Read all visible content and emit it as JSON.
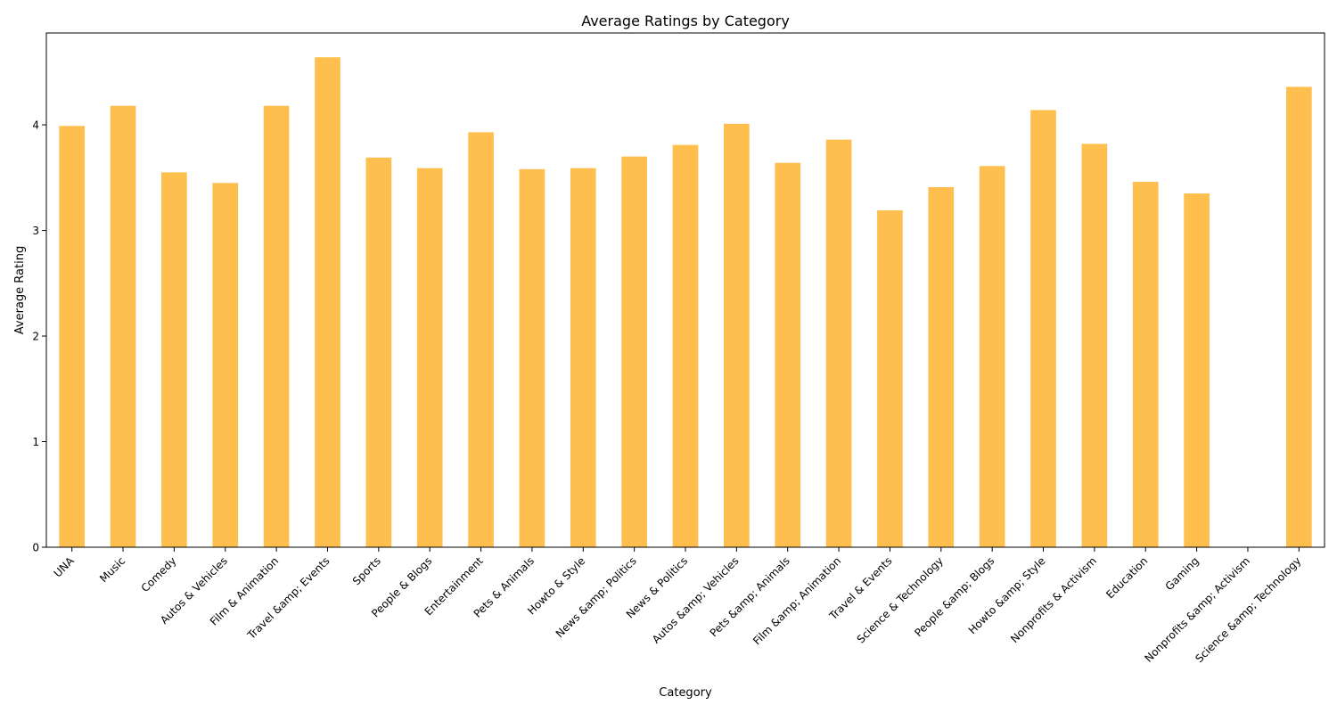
{
  "chart_data": {
    "type": "bar",
    "title": "Average Ratings by Category",
    "xlabel": "Category",
    "ylabel": "Average Rating",
    "categories": [
      "UNA",
      "Music",
      "Comedy",
      "Autos & Vehicles",
      "Film & Animation",
      "Travel &amp; Events",
      "Sports",
      "People & Blogs",
      "Entertainment",
      "Pets & Animals",
      "Howto & Style",
      "News &amp; Politics",
      "News & Politics",
      "Autos &amp; Vehicles",
      "Pets &amp; Animals",
      "Film &amp; Animation",
      "Travel & Events",
      "Science & Technology",
      "People &amp; Blogs",
      "Howto &amp; Style",
      "Nonprofits & Activism",
      "Education",
      "Gaming",
      "Nonprofits &amp; Activism",
      "Science &amp; Technology"
    ],
    "values": [
      3.99,
      4.18,
      3.55,
      3.45,
      4.18,
      4.64,
      3.69,
      3.59,
      3.93,
      3.58,
      3.59,
      3.7,
      3.81,
      4.01,
      3.64,
      3.86,
      3.19,
      3.41,
      3.61,
      4.14,
      3.82,
      3.46,
      3.35,
      0,
      4.36
    ],
    "ylim": [
      0,
      4.87
    ],
    "yticks": [
      0,
      1,
      2,
      3,
      4
    ],
    "grid": false,
    "bar_color": "#FFBF4F"
  }
}
